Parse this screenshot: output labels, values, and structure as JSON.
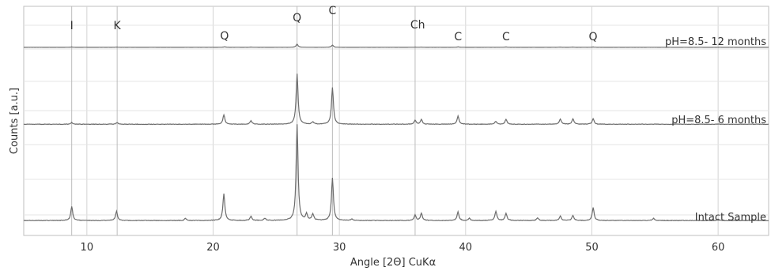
{
  "chart_data": {
    "type": "line",
    "title": "",
    "xlabel": "Angle [2Θ] CuKα",
    "ylabel": "Counts [a.u.]",
    "xlim": [
      5,
      64
    ],
    "x_ticks": [
      10,
      20,
      30,
      40,
      50,
      60
    ],
    "y_ticks_labeled": false,
    "grid": true,
    "legend": "none",
    "series": [
      {
        "name": "pH=8.5- 12 months",
        "color": "#6b6b6b",
        "baseline": 0.1,
        "noise": 0.08,
        "peaks": [
          {
            "x": 8.8,
            "h": 0.3
          },
          {
            "x": 12.4,
            "h": 0.2
          },
          {
            "x": 20.9,
            "h": 0.5
          },
          {
            "x": 23.0,
            "h": 0.2
          },
          {
            "x": 26.65,
            "h": 2.8
          },
          {
            "x": 29.45,
            "h": 2.0
          },
          {
            "x": 36.0,
            "h": 0.2
          },
          {
            "x": 36.5,
            "h": 0.15
          },
          {
            "x": 39.4,
            "h": 0.4
          },
          {
            "x": 43.2,
            "h": 0.3
          },
          {
            "x": 47.5,
            "h": 0.2
          },
          {
            "x": 48.5,
            "h": 0.2
          },
          {
            "x": 50.1,
            "h": 0.3
          }
        ]
      },
      {
        "name": "pH=8.5- 6 months",
        "color": "#6b6b6b",
        "baseline": 0.1,
        "noise": 0.08,
        "peaks": [
          {
            "x": 8.8,
            "h": 0.3
          },
          {
            "x": 12.4,
            "h": 0.3
          },
          {
            "x": 20.85,
            "h": 1.6
          },
          {
            "x": 23.0,
            "h": 0.6
          },
          {
            "x": 26.65,
            "h": 8.5
          },
          {
            "x": 27.9,
            "h": 0.4
          },
          {
            "x": 29.45,
            "h": 6.2
          },
          {
            "x": 36.0,
            "h": 0.7
          },
          {
            "x": 36.5,
            "h": 0.8
          },
          {
            "x": 39.4,
            "h": 1.4
          },
          {
            "x": 42.4,
            "h": 0.5
          },
          {
            "x": 43.2,
            "h": 0.8
          },
          {
            "x": 47.5,
            "h": 0.9
          },
          {
            "x": 48.5,
            "h": 0.9
          },
          {
            "x": 50.1,
            "h": 0.9
          }
        ]
      },
      {
        "name": "Intact Sample",
        "color": "#6b6b6b",
        "baseline": 0.1,
        "noise": 0.08,
        "peaks": [
          {
            "x": 8.8,
            "h": 2.0
          },
          {
            "x": 12.35,
            "h": 1.3
          },
          {
            "x": 17.8,
            "h": 0.3
          },
          {
            "x": 20.85,
            "h": 3.8
          },
          {
            "x": 23.0,
            "h": 0.6
          },
          {
            "x": 24.1,
            "h": 0.3
          },
          {
            "x": 26.65,
            "h": 13.5
          },
          {
            "x": 27.4,
            "h": 0.9
          },
          {
            "x": 27.9,
            "h": 0.9
          },
          {
            "x": 29.45,
            "h": 6.0
          },
          {
            "x": 31.0,
            "h": 0.2
          },
          {
            "x": 36.0,
            "h": 0.8
          },
          {
            "x": 36.5,
            "h": 1.0
          },
          {
            "x": 39.4,
            "h": 1.2
          },
          {
            "x": 40.3,
            "h": 0.3
          },
          {
            "x": 42.4,
            "h": 1.3
          },
          {
            "x": 43.2,
            "h": 1.0
          },
          {
            "x": 45.7,
            "h": 0.4
          },
          {
            "x": 47.5,
            "h": 0.6
          },
          {
            "x": 48.5,
            "h": 0.7
          },
          {
            "x": 50.1,
            "h": 1.8
          },
          {
            "x": 54.9,
            "h": 0.3
          },
          {
            "x": 60.0,
            "h": 0.2
          }
        ]
      }
    ],
    "peak_labels": [
      {
        "text": "I",
        "x": 8.8
      },
      {
        "text": "K",
        "x": 12.4
      },
      {
        "text": "Q",
        "x": 20.9
      },
      {
        "text": "Q",
        "x": 26.65
      },
      {
        "text": "C",
        "x": 29.45
      },
      {
        "text": "Ch",
        "x": 36.2
      },
      {
        "text": "C",
        "x": 39.4
      },
      {
        "text": "C",
        "x": 43.2
      },
      {
        "text": "Q",
        "x": 50.1
      }
    ],
    "reference_lines_x": [
      8.8,
      12.4,
      26.65,
      29.45,
      36.0
    ]
  }
}
